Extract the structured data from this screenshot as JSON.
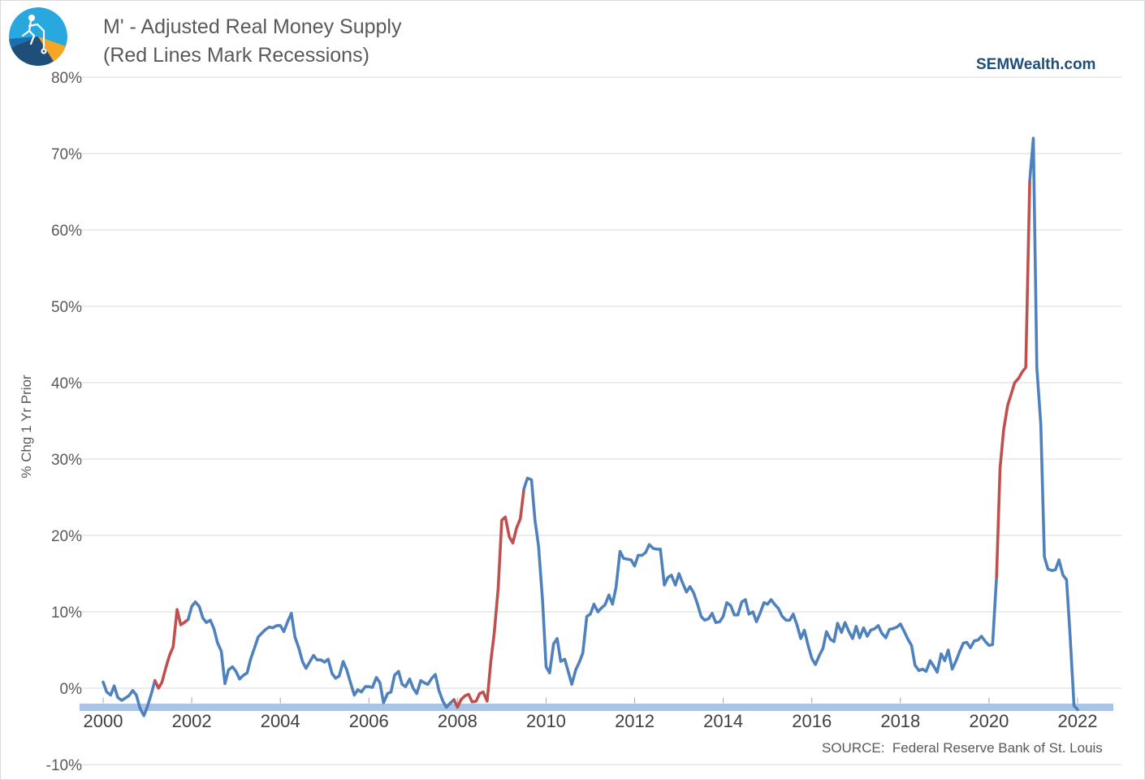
{
  "header": {
    "title": "M' - Adjusted Real Money Supply",
    "subtitle": "(Red Lines Mark Recessions)",
    "brand": "SEMWealth.com",
    "source": "SOURCE:  Federal Reserve Bank of St. Louis"
  },
  "logo": {
    "icon": "semwealth-logo-icon",
    "colors": [
      "#29a8e0",
      "#1f4e79",
      "#f5a623"
    ]
  },
  "chart_data": {
    "type": "line",
    "title": "M' - Adjusted Real Money Supply",
    "subtitle": "(Red Lines Mark Recessions)",
    "xlabel": "",
    "ylabel": "% Chg 1 Yr Prior",
    "xlim": [
      2000,
      2022.5
    ],
    "ylim": [
      -10,
      80
    ],
    "yticks": [
      -10,
      0,
      10,
      20,
      30,
      40,
      50,
      60,
      70,
      80
    ],
    "ytick_labels": [
      "-10%",
      "0%",
      "10%",
      "20%",
      "30%",
      "40%",
      "50%",
      "60%",
      "70%",
      "80%"
    ],
    "xticks": [
      2000,
      2002,
      2004,
      2006,
      2008,
      2010,
      2012,
      2014,
      2016,
      2018,
      2020,
      2022
    ],
    "xtick_labels": [
      "2000",
      "2002",
      "2004",
      "2006",
      "2008",
      "2010",
      "2012",
      "2014",
      "2016",
      "2018",
      "2020",
      "2022"
    ],
    "grid": true,
    "colors": {
      "normal": "#4f81bd",
      "recession": "#c0504d",
      "band": "#a9c4e4"
    },
    "baseline_band_value": -2.5,
    "recessions": [
      [
        2001.17,
        2001.92
      ],
      [
        2007.92,
        2009.5
      ],
      [
        2020.17,
        2020.92
      ]
    ],
    "series": [
      {
        "values": [
          [
            2000.0,
            0.8
          ],
          [
            2000.08,
            -0.5
          ],
          [
            2000.17,
            -0.9
          ],
          [
            2000.25,
            0.3
          ],
          [
            2000.33,
            -1.2
          ],
          [
            2000.42,
            -1.6
          ],
          [
            2000.5,
            -1.3
          ],
          [
            2000.58,
            -1.0
          ],
          [
            2000.67,
            -0.3
          ],
          [
            2000.75,
            -0.9
          ],
          [
            2000.83,
            -2.6
          ],
          [
            2000.92,
            -3.6
          ],
          [
            2001.0,
            -2.4
          ],
          [
            2001.08,
            -0.9
          ],
          [
            2001.17,
            1.0
          ],
          [
            2001.25,
            0.0
          ],
          [
            2001.33,
            0.8
          ],
          [
            2001.42,
            2.8
          ],
          [
            2001.5,
            4.3
          ],
          [
            2001.58,
            5.4
          ],
          [
            2001.67,
            10.3
          ],
          [
            2001.75,
            8.3
          ],
          [
            2001.83,
            8.6
          ],
          [
            2001.92,
            9.0
          ],
          [
            2002.0,
            10.7
          ],
          [
            2002.08,
            11.3
          ],
          [
            2002.17,
            10.7
          ],
          [
            2002.25,
            9.2
          ],
          [
            2002.33,
            8.6
          ],
          [
            2002.42,
            8.9
          ],
          [
            2002.5,
            7.8
          ],
          [
            2002.58,
            6.0
          ],
          [
            2002.67,
            4.8
          ],
          [
            2002.75,
            0.6
          ],
          [
            2002.83,
            2.4
          ],
          [
            2002.92,
            2.8
          ],
          [
            2003.0,
            2.2
          ],
          [
            2003.08,
            1.2
          ],
          [
            2003.17,
            1.7
          ],
          [
            2003.25,
            2.0
          ],
          [
            2003.33,
            3.8
          ],
          [
            2003.42,
            5.3
          ],
          [
            2003.5,
            6.7
          ],
          [
            2003.58,
            7.2
          ],
          [
            2003.67,
            7.7
          ],
          [
            2003.75,
            8.0
          ],
          [
            2003.83,
            7.9
          ],
          [
            2003.92,
            8.2
          ],
          [
            2004.0,
            8.2
          ],
          [
            2004.08,
            7.4
          ],
          [
            2004.17,
            8.8
          ],
          [
            2004.25,
            9.8
          ],
          [
            2004.33,
            6.7
          ],
          [
            2004.42,
            5.2
          ],
          [
            2004.5,
            3.5
          ],
          [
            2004.58,
            2.6
          ],
          [
            2004.67,
            3.5
          ],
          [
            2004.75,
            4.3
          ],
          [
            2004.83,
            3.7
          ],
          [
            2004.92,
            3.7
          ],
          [
            2005.0,
            3.4
          ],
          [
            2005.08,
            3.8
          ],
          [
            2005.17,
            1.9
          ],
          [
            2005.25,
            1.3
          ],
          [
            2005.33,
            1.6
          ],
          [
            2005.42,
            3.5
          ],
          [
            2005.5,
            2.4
          ],
          [
            2005.58,
            0.8
          ],
          [
            2005.67,
            -0.9
          ],
          [
            2005.75,
            -0.2
          ],
          [
            2005.83,
            -0.5
          ],
          [
            2005.92,
            0.2
          ],
          [
            2006.0,
            0.2
          ],
          [
            2006.08,
            0.1
          ],
          [
            2006.17,
            1.4
          ],
          [
            2006.25,
            0.7
          ],
          [
            2006.33,
            -1.9
          ],
          [
            2006.42,
            -0.7
          ],
          [
            2006.5,
            -0.5
          ],
          [
            2006.58,
            1.7
          ],
          [
            2006.67,
            2.2
          ],
          [
            2006.75,
            0.5
          ],
          [
            2006.83,
            0.2
          ],
          [
            2006.92,
            1.2
          ],
          [
            2007.0,
            0.0
          ],
          [
            2007.08,
            -0.7
          ],
          [
            2007.17,
            1.0
          ],
          [
            2007.25,
            0.7
          ],
          [
            2007.33,
            0.5
          ],
          [
            2007.42,
            1.3
          ],
          [
            2007.5,
            1.8
          ],
          [
            2007.58,
            -0.3
          ],
          [
            2007.67,
            -1.7
          ],
          [
            2007.75,
            -2.5
          ],
          [
            2007.83,
            -2.0
          ],
          [
            2007.92,
            -1.5
          ],
          [
            2008.0,
            -2.5
          ],
          [
            2008.08,
            -1.5
          ],
          [
            2008.17,
            -1.0
          ],
          [
            2008.25,
            -0.8
          ],
          [
            2008.33,
            -1.8
          ],
          [
            2008.42,
            -1.7
          ],
          [
            2008.5,
            -0.7
          ],
          [
            2008.58,
            -0.5
          ],
          [
            2008.67,
            -1.7
          ],
          [
            2008.75,
            3.4
          ],
          [
            2008.83,
            7.2
          ],
          [
            2008.92,
            13.1
          ],
          [
            2009.0,
            22.0
          ],
          [
            2009.08,
            22.4
          ],
          [
            2009.17,
            19.8
          ],
          [
            2009.25,
            19.0
          ],
          [
            2009.33,
            20.9
          ],
          [
            2009.42,
            22.2
          ],
          [
            2009.5,
            26.1
          ],
          [
            2009.58,
            27.5
          ],
          [
            2009.67,
            27.3
          ],
          [
            2009.75,
            22.0
          ],
          [
            2009.83,
            18.6
          ],
          [
            2009.92,
            11.5
          ],
          [
            2010.0,
            2.8
          ],
          [
            2010.08,
            2.0
          ],
          [
            2010.17,
            5.8
          ],
          [
            2010.25,
            6.5
          ],
          [
            2010.33,
            3.5
          ],
          [
            2010.42,
            3.8
          ],
          [
            2010.5,
            2.2
          ],
          [
            2010.58,
            0.5
          ],
          [
            2010.67,
            2.4
          ],
          [
            2010.75,
            3.4
          ],
          [
            2010.83,
            4.6
          ],
          [
            2010.92,
            9.4
          ],
          [
            2011.0,
            9.7
          ],
          [
            2011.08,
            11.0
          ],
          [
            2011.17,
            10.0
          ],
          [
            2011.25,
            10.5
          ],
          [
            2011.33,
            10.9
          ],
          [
            2011.42,
            12.2
          ],
          [
            2011.5,
            11.0
          ],
          [
            2011.58,
            13.2
          ],
          [
            2011.67,
            17.9
          ],
          [
            2011.75,
            17.0
          ],
          [
            2011.83,
            16.9
          ],
          [
            2011.92,
            16.8
          ],
          [
            2012.0,
            16.0
          ],
          [
            2012.08,
            17.4
          ],
          [
            2012.17,
            17.4
          ],
          [
            2012.25,
            17.8
          ],
          [
            2012.33,
            18.8
          ],
          [
            2012.42,
            18.3
          ],
          [
            2012.5,
            18.2
          ],
          [
            2012.58,
            18.2
          ],
          [
            2012.67,
            13.5
          ],
          [
            2012.75,
            14.5
          ],
          [
            2012.83,
            14.8
          ],
          [
            2012.92,
            13.5
          ],
          [
            2013.0,
            15.0
          ],
          [
            2013.08,
            13.8
          ],
          [
            2013.17,
            12.6
          ],
          [
            2013.25,
            13.3
          ],
          [
            2013.33,
            12.5
          ],
          [
            2013.42,
            11.0
          ],
          [
            2013.5,
            9.4
          ],
          [
            2013.58,
            8.9
          ],
          [
            2013.67,
            9.1
          ],
          [
            2013.75,
            9.8
          ],
          [
            2013.83,
            8.6
          ],
          [
            2013.92,
            8.7
          ],
          [
            2014.0,
            9.4
          ],
          [
            2014.08,
            11.2
          ],
          [
            2014.17,
            10.8
          ],
          [
            2014.25,
            9.6
          ],
          [
            2014.33,
            9.6
          ],
          [
            2014.42,
            11.3
          ],
          [
            2014.5,
            11.6
          ],
          [
            2014.58,
            9.7
          ],
          [
            2014.67,
            10.0
          ],
          [
            2014.75,
            8.7
          ],
          [
            2014.83,
            9.8
          ],
          [
            2014.92,
            11.2
          ],
          [
            2015.0,
            11.0
          ],
          [
            2015.08,
            11.6
          ],
          [
            2015.17,
            10.9
          ],
          [
            2015.25,
            10.4
          ],
          [
            2015.33,
            9.4
          ],
          [
            2015.42,
            8.9
          ],
          [
            2015.5,
            8.9
          ],
          [
            2015.58,
            9.7
          ],
          [
            2015.67,
            8.2
          ],
          [
            2015.75,
            6.5
          ],
          [
            2015.83,
            7.6
          ],
          [
            2015.92,
            5.5
          ],
          [
            2016.0,
            3.9
          ],
          [
            2016.08,
            3.1
          ],
          [
            2016.17,
            4.3
          ],
          [
            2016.25,
            5.2
          ],
          [
            2016.33,
            7.4
          ],
          [
            2016.42,
            6.4
          ],
          [
            2016.5,
            6.1
          ],
          [
            2016.58,
            8.5
          ],
          [
            2016.67,
            7.3
          ],
          [
            2016.75,
            8.6
          ],
          [
            2016.83,
            7.5
          ],
          [
            2016.92,
            6.5
          ],
          [
            2017.0,
            8.1
          ],
          [
            2017.08,
            6.6
          ],
          [
            2017.17,
            7.9
          ],
          [
            2017.25,
            6.8
          ],
          [
            2017.33,
            7.6
          ],
          [
            2017.42,
            7.8
          ],
          [
            2017.5,
            8.2
          ],
          [
            2017.58,
            7.2
          ],
          [
            2017.67,
            6.6
          ],
          [
            2017.75,
            7.7
          ],
          [
            2017.83,
            7.8
          ],
          [
            2017.92,
            8.0
          ],
          [
            2018.0,
            8.4
          ],
          [
            2018.08,
            7.5
          ],
          [
            2018.17,
            6.4
          ],
          [
            2018.25,
            5.6
          ],
          [
            2018.33,
            3.0
          ],
          [
            2018.42,
            2.3
          ],
          [
            2018.5,
            2.5
          ],
          [
            2018.58,
            2.2
          ],
          [
            2018.67,
            3.6
          ],
          [
            2018.75,
            2.9
          ],
          [
            2018.83,
            2.1
          ],
          [
            2018.92,
            4.5
          ],
          [
            2019.0,
            3.6
          ],
          [
            2019.08,
            5.0
          ],
          [
            2019.17,
            2.5
          ],
          [
            2019.25,
            3.5
          ],
          [
            2019.33,
            4.7
          ],
          [
            2019.42,
            5.9
          ],
          [
            2019.5,
            6.0
          ],
          [
            2019.58,
            5.3
          ],
          [
            2019.67,
            6.2
          ],
          [
            2019.75,
            6.3
          ],
          [
            2019.83,
            6.8
          ],
          [
            2019.92,
            6.1
          ],
          [
            2020.0,
            5.6
          ],
          [
            2020.08,
            5.7
          ],
          [
            2020.17,
            14.6
          ],
          [
            2020.25,
            28.8
          ],
          [
            2020.33,
            33.8
          ],
          [
            2020.42,
            37.0
          ],
          [
            2020.5,
            38.5
          ],
          [
            2020.58,
            40.0
          ],
          [
            2020.67,
            40.6
          ],
          [
            2020.75,
            41.4
          ],
          [
            2020.83,
            42.0
          ],
          [
            2020.92,
            66.5
          ],
          [
            2021.0,
            72.0
          ],
          [
            2021.08,
            42.0
          ],
          [
            2021.17,
            34.5
          ],
          [
            2021.25,
            17.2
          ],
          [
            2021.33,
            15.6
          ],
          [
            2021.42,
            15.4
          ],
          [
            2021.5,
            15.5
          ],
          [
            2021.58,
            16.8
          ],
          [
            2021.67,
            14.8
          ],
          [
            2021.75,
            14.2
          ],
          [
            2021.83,
            7.0
          ],
          [
            2021.92,
            -2.3
          ],
          [
            2022.0,
            -2.8
          ]
        ]
      }
    ]
  }
}
